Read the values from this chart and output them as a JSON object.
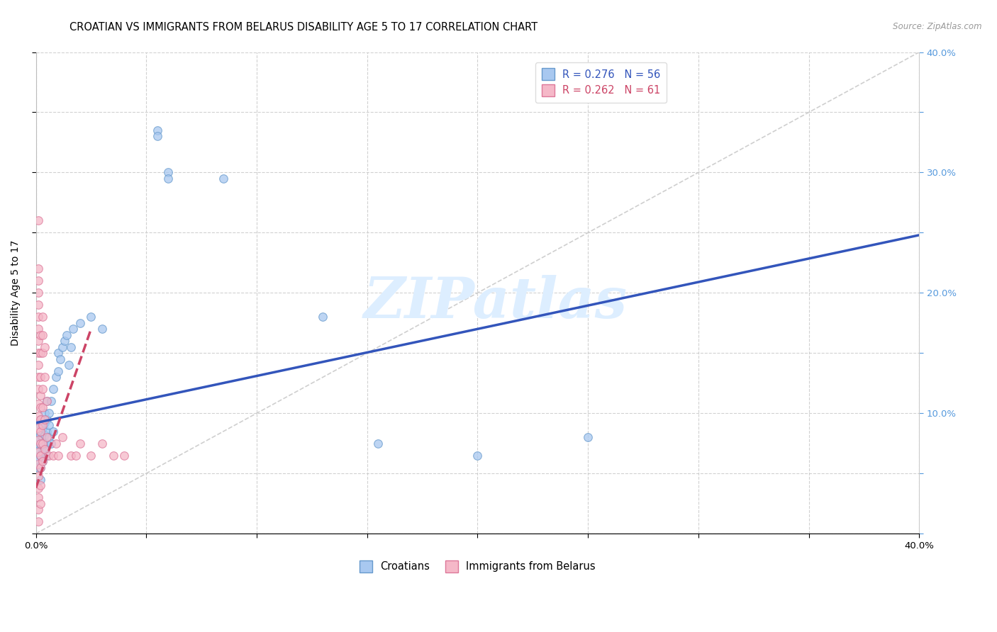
{
  "title": "CROATIAN VS IMMIGRANTS FROM BELARUS DISABILITY AGE 5 TO 17 CORRELATION CHART",
  "source": "Source: ZipAtlas.com",
  "ylabel": "Disability Age 5 to 17",
  "xlim": [
    0.0,
    0.4
  ],
  "ylim": [
    0.0,
    0.4
  ],
  "xticks": [
    0.0,
    0.05,
    0.1,
    0.15,
    0.2,
    0.25,
    0.3,
    0.35,
    0.4
  ],
  "yticks": [
    0.0,
    0.05,
    0.1,
    0.15,
    0.2,
    0.25,
    0.3,
    0.35,
    0.4
  ],
  "legend_r_blue": "R = 0.276",
  "legend_n_blue": "N = 56",
  "legend_r_pink": "R = 0.262",
  "legend_n_pink": "N = 61",
  "croatians": [
    [
      0.001,
      0.055
    ],
    [
      0.001,
      0.062
    ],
    [
      0.001,
      0.07
    ],
    [
      0.001,
      0.075
    ],
    [
      0.001,
      0.08
    ],
    [
      0.002,
      0.045
    ],
    [
      0.002,
      0.055
    ],
    [
      0.002,
      0.065
    ],
    [
      0.002,
      0.075
    ],
    [
      0.002,
      0.082
    ],
    [
      0.002,
      0.09
    ],
    [
      0.002,
      0.095
    ],
    [
      0.003,
      0.06
    ],
    [
      0.003,
      0.068
    ],
    [
      0.003,
      0.075
    ],
    [
      0.003,
      0.08
    ],
    [
      0.003,
      0.088
    ],
    [
      0.003,
      0.095
    ],
    [
      0.004,
      0.07
    ],
    [
      0.004,
      0.082
    ],
    [
      0.004,
      0.092
    ],
    [
      0.004,
      0.1
    ],
    [
      0.005,
      0.065
    ],
    [
      0.005,
      0.075
    ],
    [
      0.005,
      0.085
    ],
    [
      0.005,
      0.095
    ],
    [
      0.005,
      0.11
    ],
    [
      0.006,
      0.08
    ],
    [
      0.006,
      0.09
    ],
    [
      0.006,
      0.1
    ],
    [
      0.007,
      0.075
    ],
    [
      0.007,
      0.11
    ],
    [
      0.008,
      0.085
    ],
    [
      0.008,
      0.12
    ],
    [
      0.009,
      0.13
    ],
    [
      0.01,
      0.135
    ],
    [
      0.01,
      0.15
    ],
    [
      0.011,
      0.145
    ],
    [
      0.012,
      0.155
    ],
    [
      0.013,
      0.16
    ],
    [
      0.014,
      0.165
    ],
    [
      0.015,
      0.14
    ],
    [
      0.016,
      0.155
    ],
    [
      0.017,
      0.17
    ],
    [
      0.02,
      0.175
    ],
    [
      0.025,
      0.18
    ],
    [
      0.03,
      0.17
    ],
    [
      0.055,
      0.335
    ],
    [
      0.055,
      0.33
    ],
    [
      0.06,
      0.3
    ],
    [
      0.06,
      0.295
    ],
    [
      0.085,
      0.295
    ],
    [
      0.13,
      0.18
    ],
    [
      0.155,
      0.075
    ],
    [
      0.2,
      0.065
    ],
    [
      0.25,
      0.08
    ]
  ],
  "belarus": [
    [
      0.001,
      0.01
    ],
    [
      0.001,
      0.02
    ],
    [
      0.001,
      0.03
    ],
    [
      0.001,
      0.038
    ],
    [
      0.001,
      0.048
    ],
    [
      0.001,
      0.058
    ],
    [
      0.001,
      0.068
    ],
    [
      0.001,
      0.078
    ],
    [
      0.001,
      0.088
    ],
    [
      0.001,
      0.098
    ],
    [
      0.001,
      0.108
    ],
    [
      0.001,
      0.12
    ],
    [
      0.001,
      0.13
    ],
    [
      0.001,
      0.14
    ],
    [
      0.001,
      0.15
    ],
    [
      0.001,
      0.16
    ],
    [
      0.001,
      0.17
    ],
    [
      0.001,
      0.18
    ],
    [
      0.001,
      0.19
    ],
    [
      0.001,
      0.2
    ],
    [
      0.001,
      0.21
    ],
    [
      0.001,
      0.22
    ],
    [
      0.001,
      0.26
    ],
    [
      0.002,
      0.025
    ],
    [
      0.002,
      0.04
    ],
    [
      0.002,
      0.055
    ],
    [
      0.002,
      0.065
    ],
    [
      0.002,
      0.075
    ],
    [
      0.002,
      0.085
    ],
    [
      0.002,
      0.095
    ],
    [
      0.002,
      0.105
    ],
    [
      0.002,
      0.115
    ],
    [
      0.002,
      0.13
    ],
    [
      0.002,
      0.15
    ],
    [
      0.002,
      0.165
    ],
    [
      0.003,
      0.06
    ],
    [
      0.003,
      0.075
    ],
    [
      0.003,
      0.09
    ],
    [
      0.003,
      0.105
    ],
    [
      0.003,
      0.12
    ],
    [
      0.003,
      0.15
    ],
    [
      0.003,
      0.165
    ],
    [
      0.003,
      0.18
    ],
    [
      0.004,
      0.07
    ],
    [
      0.004,
      0.095
    ],
    [
      0.004,
      0.13
    ],
    [
      0.004,
      0.155
    ],
    [
      0.005,
      0.08
    ],
    [
      0.005,
      0.11
    ],
    [
      0.006,
      0.065
    ],
    [
      0.008,
      0.065
    ],
    [
      0.009,
      0.075
    ],
    [
      0.01,
      0.065
    ],
    [
      0.012,
      0.08
    ],
    [
      0.016,
      0.065
    ],
    [
      0.018,
      0.065
    ],
    [
      0.02,
      0.075
    ],
    [
      0.025,
      0.065
    ],
    [
      0.03,
      0.075
    ],
    [
      0.035,
      0.065
    ],
    [
      0.04,
      0.065
    ]
  ],
  "blue_line_x": [
    0.0,
    0.4
  ],
  "blue_line_y": [
    0.092,
    0.248
  ],
  "pink_line_x": [
    0.0,
    0.025
  ],
  "pink_line_y": [
    0.038,
    0.17
  ],
  "diag_line_x": [
    0.0,
    0.4
  ],
  "diag_line_y": [
    0.0,
    0.4
  ],
  "scatter_size": 70,
  "blue_color": "#A8C8F0",
  "pink_color": "#F5B8C8",
  "blue_edge": "#6699CC",
  "pink_edge": "#DD7799",
  "blue_line_color": "#3355BB",
  "pink_line_color": "#CC4466",
  "bg_color": "#FFFFFF",
  "grid_color": "#CCCCCC",
  "watermark": "ZIPatlas",
  "watermark_color": "#DDEEFF",
  "right_tick_color": "#5599DD",
  "title_fontsize": 10.5,
  "axis_label_fontsize": 10,
  "tick_fontsize": 9.5
}
